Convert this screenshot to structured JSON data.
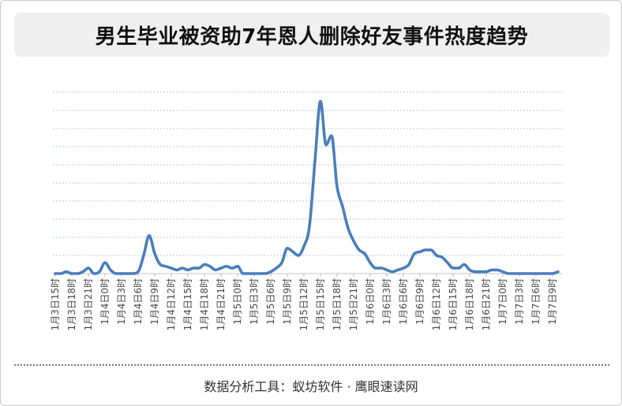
{
  "chart_data": {
    "type": "line",
    "title": "男生毕业被资助7年恩人删除好友事件热度趋势",
    "xlabel": "",
    "ylabel": "",
    "x_tick_labels": [
      "1月3日15时",
      "1月3日18时",
      "1月3日21时",
      "1月4日0时",
      "1月4日3时",
      "1月4日6时",
      "1月4日9时",
      "1月4日12时",
      "1月4日15时",
      "1月4日18时",
      "1月4日21时",
      "1月5日0时",
      "1月5日3时",
      "1月5日6时",
      "1月5日9时",
      "1月5日12时",
      "1月5日15时",
      "1月5日18时",
      "1月5日21时",
      "1月6日0时",
      "1月6日3时",
      "1月6日6时",
      "1月6日9时",
      "1月6日12时",
      "1月6日15时",
      "1月6日18时",
      "1月6日21时",
      "1月7日0时",
      "1月7日3时",
      "1月7日6时",
      "1月7日9时"
    ],
    "series": [
      {
        "color": "#4a7ebb",
        "smooth": true,
        "values": [
          0,
          0,
          1,
          0,
          0,
          1,
          3,
          0,
          1,
          6,
          2,
          0,
          0,
          0,
          0,
          1,
          10,
          21,
          11,
          5,
          4,
          3,
          2,
          3,
          2,
          3,
          3,
          5,
          4,
          2,
          3,
          4,
          3,
          4,
          0,
          0,
          0,
          0,
          0,
          1,
          3,
          6,
          14,
          12,
          10,
          15,
          26,
          62,
          95,
          71,
          76,
          48,
          37,
          25,
          18,
          13,
          11,
          6,
          3,
          3,
          2,
          1,
          2,
          3,
          5,
          11,
          12,
          13,
          13,
          10,
          9,
          6,
          3,
          3,
          5,
          2,
          1,
          1,
          1,
          2,
          2,
          1,
          0,
          0,
          0,
          0,
          0,
          0,
          0,
          0,
          0,
          1
        ]
      }
    ],
    "ylim": [
      0,
      100
    ],
    "grid": true,
    "legend": "none"
  },
  "colors": {
    "series_line": "#4a7ebb",
    "gridline": "#9db8da"
  },
  "footer": {
    "source": "数据分析工具：蚁坊软件 · 鹰眼速读网"
  }
}
